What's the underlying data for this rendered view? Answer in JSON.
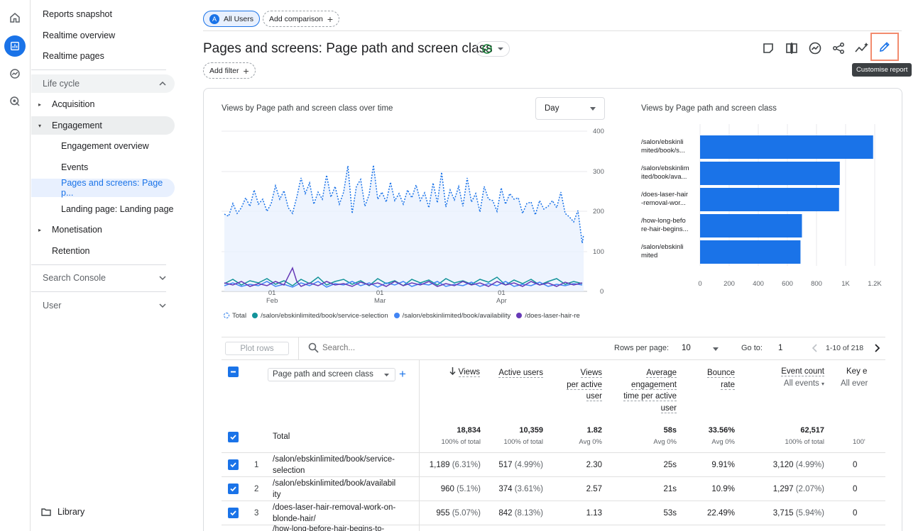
{
  "nav": {
    "items": [
      "Reports snapshot",
      "Realtime overview",
      "Realtime pages"
    ],
    "lifecycle": "Life cycle",
    "acquisition": "Acquisition",
    "engagement": "Engagement",
    "engagement_sub": [
      "Engagement overview",
      "Events",
      "Pages and screens: Page p...",
      "Landing page: Landing page"
    ],
    "monetisation": "Monetisation",
    "retention": "Retention",
    "search_console": "Search Console",
    "user": "User",
    "library": "Library"
  },
  "header": {
    "segment_initial": "A",
    "segment": "All Users",
    "add_comparison": "Add comparison",
    "title": "Pages and screens: Page path and screen class",
    "add_filter": "Add filter",
    "tooltip": "Customise report"
  },
  "line_chart": {
    "title": "Views by Page path and screen class over time",
    "period": "Day",
    "y_ticks": [
      "400",
      "300",
      "200",
      "100",
      "0"
    ],
    "x_ticks": [
      {
        "d": "01",
        "m": "Feb"
      },
      {
        "d": "01",
        "m": "Mar"
      },
      {
        "d": "01",
        "m": "Apr"
      }
    ],
    "legend": [
      {
        "label": "Total",
        "color": "#1a73e8"
      },
      {
        "label": "/salon/ebskinlimited/book/service-selection",
        "color": "#12939a"
      },
      {
        "label": "/salon/ebskinlimited/book/availability",
        "color": "#4285f4"
      },
      {
        "label": "/does-laser-hair-re",
        "color": "#673ab7"
      }
    ]
  },
  "chart_data": {
    "type": "bar",
    "title": "Views by Page path and screen class",
    "categories": [
      "/salon/ebskinli mited/book/s...",
      "/salon/ebskinlim ited/book/ava...",
      "/does-laser-hair -removal-wor...",
      "/how-long-befo re-hair-begins...",
      "/salon/ebskinli mited"
    ],
    "values": [
      1189,
      960,
      955,
      700,
      690
    ],
    "x_ticks": [
      "0",
      "200",
      "400",
      "600",
      "800",
      "1K",
      "1.2K"
    ],
    "xlim": [
      0,
      1200
    ],
    "color": "#1a73e8"
  },
  "table": {
    "plot_rows": "Plot rows",
    "search": "Search...",
    "rows_per_page_label": "Rows per page:",
    "rows_per_page": "10",
    "goto_label": "Go to:",
    "goto": "1",
    "range": "1-10 of 218",
    "dimension": "Page path and screen class",
    "columns": [
      "Views",
      "Active users",
      "Views per active user",
      "Average engagement time per active user",
      "Bounce rate",
      "Event count",
      "Key e"
    ],
    "event_filter": "All events",
    "key_filter": "All ever",
    "total_label": "Total",
    "totals": [
      {
        "v": "18,834",
        "s": "100% of total"
      },
      {
        "v": "10,359",
        "s": "100% of total"
      },
      {
        "v": "1.82",
        "s": "Avg 0%"
      },
      {
        "v": "58s",
        "s": "Avg 0%"
      },
      {
        "v": "33.56%",
        "s": "Avg 0%"
      },
      {
        "v": "62,517",
        "s": "100% of total"
      },
      {
        "v": "",
        "s": "100'"
      }
    ],
    "rows": [
      {
        "n": "1",
        "path1": "/salon/ebskinlimited/book/service-",
        "path2": "selection",
        "views": "1,189",
        "vp": "(6.31%)",
        "users": "517",
        "up": "(4.99%)",
        "vpu": "2.30",
        "avg": "25s",
        "bounce": "9.91%",
        "events": "3,120",
        "ep": "(4.99%)",
        "key": "0"
      },
      {
        "n": "2",
        "path1": "/salon/ebskinlimited/book/availabil",
        "path2": "ity",
        "views": "960",
        "vp": "(5.1%)",
        "users": "374",
        "up": "(3.61%)",
        "vpu": "2.57",
        "avg": "21s",
        "bounce": "10.9%",
        "events": "1,297",
        "ep": "(2.07%)",
        "key": "0"
      },
      {
        "n": "3",
        "path1": "/does-laser-hair-removal-work-on-",
        "path2": "blonde-hair/",
        "views": "955",
        "vp": "(5.07%)",
        "users": "842",
        "up": "(8.13%)",
        "vpu": "1.13",
        "avg": "53s",
        "bounce": "22.49%",
        "events": "3,715",
        "ep": "(5.94%)",
        "key": "0"
      }
    ],
    "row4_partial": "/how-long-before-hair-begins-to-"
  }
}
